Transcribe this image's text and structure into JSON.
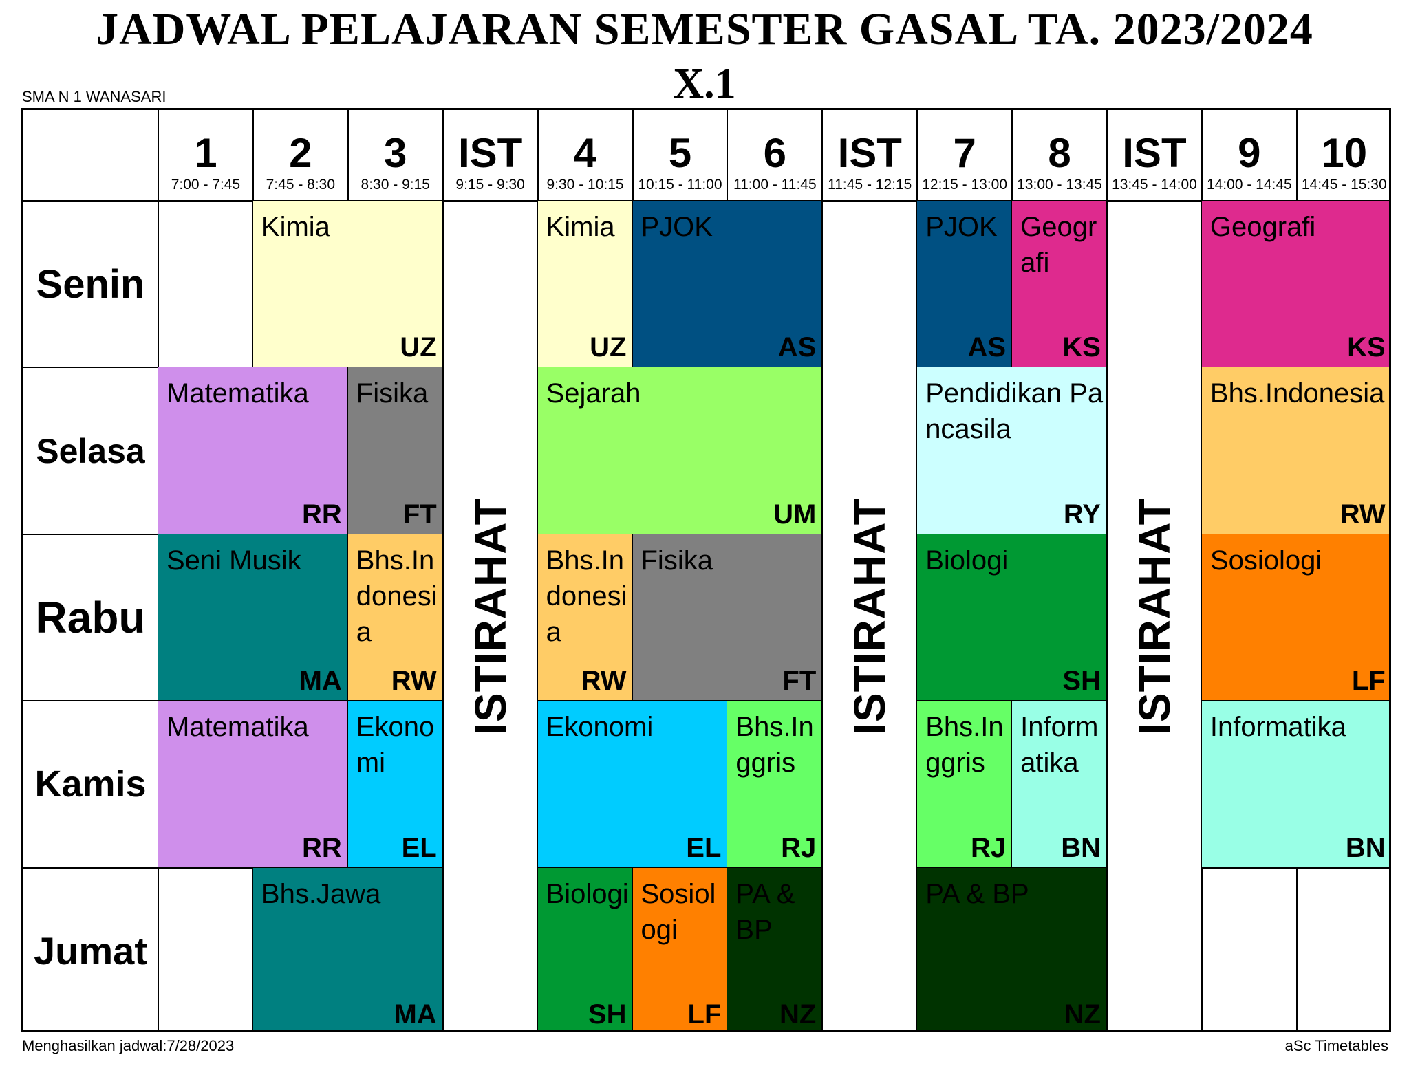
{
  "title": "JADWAL PELAJARAN SEMESTER GASAL TA. 2023/2024",
  "class_name": "X.1",
  "school": "SMA N 1 WANASARI",
  "footer": {
    "generated": "Menghasilkan jadwal:7/28/2023",
    "software": "aSc Timetables"
  },
  "periods": [
    {
      "label": "1",
      "time": "7:00 - 7:45"
    },
    {
      "label": "2",
      "time": "7:45 - 8:30"
    },
    {
      "label": "3",
      "time": "8:30 - 9:15"
    },
    {
      "label": "IST",
      "time": "9:15 - 9:30"
    },
    {
      "label": "4",
      "time": "9:30 - 10:15"
    },
    {
      "label": "5",
      "time": "10:15 - 11:00"
    },
    {
      "label": "6",
      "time": "11:00 - 11:45"
    },
    {
      "label": "IST",
      "time": "11:45 - 12:15"
    },
    {
      "label": "7",
      "time": "12:15 - 13:00"
    },
    {
      "label": "8",
      "time": "13:00 - 13:45"
    },
    {
      "label": "IST",
      "time": "13:45 - 14:00"
    },
    {
      "label": "9",
      "time": "14:00 - 14:45"
    },
    {
      "label": "10",
      "time": "14:45 - 15:30"
    }
  ],
  "break_label": "ISTIRAHAT",
  "days": [
    "Senin",
    "Selasa",
    "Rabu",
    "Kamis",
    "Jumat"
  ],
  "lessons": [
    {
      "day": 0,
      "start": 1,
      "span": 2,
      "subject": "Kimia",
      "teacher": "UZ",
      "bg": "#ffffcc",
      "fg": "#000000"
    },
    {
      "day": 0,
      "start": 4,
      "span": 1,
      "subject": "Kimia",
      "teacher": "UZ",
      "bg": "#ffffcc",
      "fg": "#000000"
    },
    {
      "day": 0,
      "start": 5,
      "span": 2,
      "subject": "PJOK",
      "teacher": "AS",
      "bg": "#005082",
      "fg": "#000000"
    },
    {
      "day": 0,
      "start": 8,
      "span": 1,
      "subject": "PJOK",
      "teacher": "AS",
      "bg": "#005082",
      "fg": "#000000"
    },
    {
      "day": 0,
      "start": 9,
      "span": 1,
      "subject": "Geografi",
      "teacher": "KS",
      "bg": "#de2a8e",
      "fg": "#000000"
    },
    {
      "day": 0,
      "start": 11,
      "span": 2,
      "subject": "Geografi",
      "teacher": "KS",
      "bg": "#de2a8e",
      "fg": "#000000"
    },
    {
      "day": 1,
      "start": 0,
      "span": 2,
      "subject": "Matematika",
      "teacher": "RR",
      "bg": "#cf8feb",
      "fg": "#000000"
    },
    {
      "day": 1,
      "start": 2,
      "span": 1,
      "subject": "Fisika",
      "teacher": "FT",
      "bg": "#808080",
      "fg": "#000000"
    },
    {
      "day": 1,
      "start": 4,
      "span": 3,
      "subject": "Sejarah",
      "teacher": "UM",
      "bg": "#99ff66",
      "fg": "#000000"
    },
    {
      "day": 1,
      "start": 8,
      "span": 2,
      "subject": "Pendidikan Pancasila",
      "teacher": "RY",
      "bg": "#ccffff",
      "fg": "#000000"
    },
    {
      "day": 1,
      "start": 11,
      "span": 2,
      "subject": "Bhs.Indonesia",
      "teacher": "RW",
      "bg": "#ffcc66",
      "fg": "#000000"
    },
    {
      "day": 2,
      "start": 0,
      "span": 2,
      "subject": "Seni Musik",
      "teacher": "MA",
      "bg": "#008080",
      "fg": "#000000"
    },
    {
      "day": 2,
      "start": 2,
      "span": 1,
      "subject": "Bhs.Indonesia",
      "teacher": "RW",
      "bg": "#ffcc66",
      "fg": "#000000"
    },
    {
      "day": 2,
      "start": 4,
      "span": 1,
      "subject": "Bhs.Indonesia",
      "teacher": "RW",
      "bg": "#ffcc66",
      "fg": "#000000"
    },
    {
      "day": 2,
      "start": 5,
      "span": 2,
      "subject": "Fisika",
      "teacher": "FT",
      "bg": "#808080",
      "fg": "#000000"
    },
    {
      "day": 2,
      "start": 8,
      "span": 2,
      "subject": "Biologi",
      "teacher": "SH",
      "bg": "#009933",
      "fg": "#000000"
    },
    {
      "day": 2,
      "start": 11,
      "span": 2,
      "subject": "Sosiologi",
      "teacher": "LF",
      "bg": "#ff8000",
      "fg": "#000000"
    },
    {
      "day": 3,
      "start": 0,
      "span": 2,
      "subject": "Matematika",
      "teacher": "RR",
      "bg": "#cf8feb",
      "fg": "#000000"
    },
    {
      "day": 3,
      "start": 2,
      "span": 1,
      "subject": "Ekonomi",
      "teacher": "EL",
      "bg": "#00ccff",
      "fg": "#000000"
    },
    {
      "day": 3,
      "start": 4,
      "span": 2,
      "subject": "Ekonomi",
      "teacher": "EL",
      "bg": "#00ccff",
      "fg": "#000000"
    },
    {
      "day": 3,
      "start": 6,
      "span": 1,
      "subject": "Bhs.Inggris",
      "teacher": "RJ",
      "bg": "#66ff66",
      "fg": "#000000"
    },
    {
      "day": 3,
      "start": 8,
      "span": 1,
      "subject": "Bhs.Inggris",
      "teacher": "RJ",
      "bg": "#66ff66",
      "fg": "#000000"
    },
    {
      "day": 3,
      "start": 9,
      "span": 1,
      "subject": "Informatika",
      "teacher": "BN",
      "bg": "#99ffe6",
      "fg": "#000000"
    },
    {
      "day": 3,
      "start": 11,
      "span": 2,
      "subject": "Informatika",
      "teacher": "BN",
      "bg": "#99ffe6",
      "fg": "#000000"
    },
    {
      "day": 4,
      "start": 1,
      "span": 2,
      "subject": "Bhs.Jawa",
      "teacher": "MA",
      "bg": "#008080",
      "fg": "#000000"
    },
    {
      "day": 4,
      "start": 4,
      "span": 1,
      "subject": "Biologi",
      "teacher": "SH",
      "bg": "#009933",
      "fg": "#000000"
    },
    {
      "day": 4,
      "start": 5,
      "span": 1,
      "subject": "Sosiologi",
      "teacher": "LF",
      "bg": "#ff8000",
      "fg": "#000000"
    },
    {
      "day": 4,
      "start": 6,
      "span": 1,
      "subject": "PA & BP",
      "teacher": "NZ",
      "bg": "#003300",
      "fg": "#000000"
    },
    {
      "day": 4,
      "start": 8,
      "span": 2,
      "subject": "PA & BP",
      "teacher": "NZ",
      "bg": "#003300",
      "fg": "#000000"
    }
  ]
}
